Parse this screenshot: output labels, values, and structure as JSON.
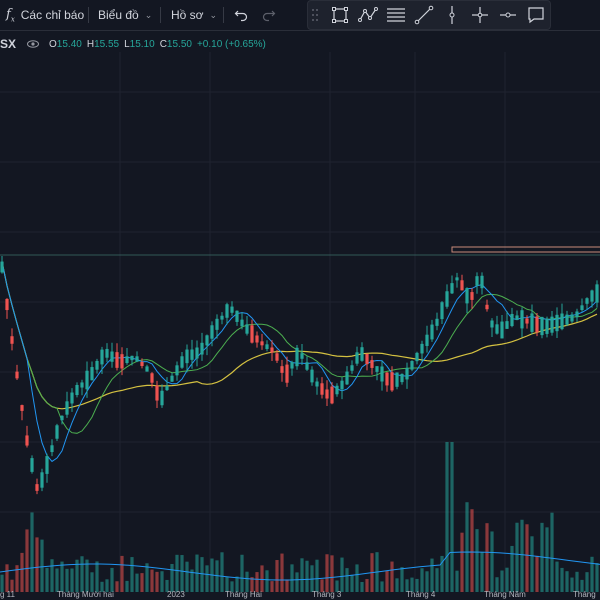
{
  "toolbar": {
    "indicators_label": "Các chỉ báo",
    "chart_label": "Biểu đồ",
    "profile_label": "Hồ sơ"
  },
  "legend": {
    "symbol_fragment": "SX",
    "open_label": "O",
    "open_value": "15.40",
    "high_label": "H",
    "high_value": "15.55",
    "low_label": "L",
    "low_value": "15.10",
    "close_label": "C",
    "close_value": "15.50",
    "change": "+0.10 (+0.65%)"
  },
  "colors": {
    "up": "#26a69a",
    "down": "#ef5350",
    "ma_long": "#d4c141",
    "ma_mid": "#4caf50",
    "ma_short": "#2196f3",
    "background": "#131722"
  },
  "x_axis": {
    "labels": [
      "g 11",
      "Tháng Mười hai",
      "2023",
      "Tháng Hai",
      "Tháng 3",
      "Tháng 4",
      "Tháng Năm",
      "Tháng"
    ]
  },
  "icons": [
    "fx-icon",
    "chevron-down-icon",
    "undo-icon",
    "redo-icon",
    "drag-handle-icon",
    "rectangle-tool-icon",
    "path-tool-icon",
    "text-lines-tool-icon",
    "trend-line-tool-icon",
    "vertical-line-tool-icon",
    "crosshair-tool-icon",
    "horizontal-ray-tool-icon",
    "comment-tool-icon",
    "eye-icon"
  ]
}
